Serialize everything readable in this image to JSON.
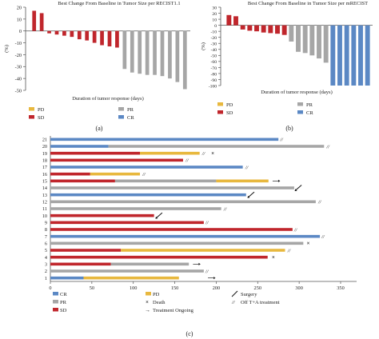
{
  "chart_data": [
    {
      "panel": "(a)",
      "type": "bar",
      "title": "Best Change From Baseline in Tumor Size per RECIST1.1",
      "ylabel": "(%)",
      "xlabel": "Duration of tumor response (days)",
      "ylim": [
        -50,
        20
      ],
      "yticks": [
        20,
        10,
        0,
        -10,
        -20,
        -30,
        -40,
        -50
      ],
      "values": [
        17,
        15,
        -2,
        -3,
        -4,
        -5,
        -7,
        -8,
        -10,
        -12,
        -13,
        -14,
        -32,
        -35,
        -36,
        -37,
        -37,
        -38,
        -40,
        -43,
        -49
      ],
      "response": [
        "SD",
        "SD",
        "SD",
        "SD",
        "SD",
        "SD",
        "SD",
        "SD",
        "SD",
        "SD",
        "SD",
        "SD",
        "PR",
        "PR",
        "PR",
        "PR",
        "PR",
        "PR",
        "PR",
        "PR",
        "PR"
      ],
      "legend": [
        {
          "key": "PD",
          "label": "PD",
          "color": "#e8b83e"
        },
        {
          "key": "PR",
          "label": "PR",
          "color": "#a6a6a6"
        },
        {
          "key": "SD",
          "label": "SD",
          "color": "#c0262c"
        },
        {
          "key": "CR",
          "label": "CR",
          "color": "#5b88c4"
        }
      ]
    },
    {
      "panel": "(b)",
      "type": "bar",
      "title": "Best Change From Baseline in Tumor Size per mRECIST",
      "ylabel": "(%)",
      "xlabel": "Duration of tumor response (days)",
      "ylim": [
        -100,
        30
      ],
      "yticks": [
        30,
        20,
        10,
        0,
        -10,
        -20,
        -30,
        -40,
        -50,
        -60,
        -70,
        -80,
        -90,
        -100
      ],
      "values": [
        17,
        15,
        -7,
        -9,
        -10,
        -12,
        -13,
        -14,
        -16,
        -27,
        -44,
        -46,
        -50,
        -55,
        -62,
        -100,
        -100,
        -100,
        -100,
        -100,
        -100
      ],
      "response": [
        "SD",
        "SD",
        "SD",
        "SD",
        "SD",
        "SD",
        "SD",
        "SD",
        "SD",
        "PR",
        "PR",
        "PR",
        "PR",
        "PR",
        "PR",
        "CR",
        "CR",
        "CR",
        "CR",
        "CR",
        "CR"
      ],
      "legend": [
        {
          "key": "PD",
          "label": "PD",
          "color": "#e8b83e"
        },
        {
          "key": "PR",
          "label": "PR",
          "color": "#a6a6a6"
        },
        {
          "key": "SD",
          "label": "SD",
          "color": "#c0262c"
        },
        {
          "key": "CR",
          "label": "CR",
          "color": "#5b88c4"
        }
      ]
    },
    {
      "panel": "(c)",
      "type": "swimmer",
      "xlim": [
        0,
        350
      ],
      "xticks": [
        0,
        50,
        100,
        150,
        200,
        250,
        300,
        350
      ],
      "patients": [
        {
          "id": "1",
          "segments": [
            {
              "s": "CR",
              "from": 0,
              "to": 40
            },
            {
              "s": "PD",
              "from": 40,
              "to": 155
            }
          ],
          "marker": "arrow",
          "at": 190
        },
        {
          "id": "2",
          "segments": [
            {
              "s": "PR",
              "from": 0,
              "to": 185
            }
          ],
          "marker": "off",
          "at": 186
        },
        {
          "id": "3",
          "segments": [
            {
              "s": "SD",
              "from": 0,
              "to": 73
            },
            {
              "s": "PR",
              "from": 73,
              "to": 167
            }
          ],
          "marker": "arrow",
          "at": 172
        },
        {
          "id": "4",
          "segments": [
            {
              "s": "SD",
              "from": 0,
              "to": 262
            }
          ],
          "marker": "death",
          "at": 266
        },
        {
          "id": "5",
          "segments": [
            {
              "s": "SD",
              "from": 0,
              "to": 85
            },
            {
              "s": "PD",
              "from": 85,
              "to": 283
            }
          ],
          "marker": "off",
          "at": 285
        },
        {
          "id": "6",
          "segments": [
            {
              "s": "PR",
              "from": 0,
              "to": 305
            }
          ],
          "marker": "death",
          "at": 308
        },
        {
          "id": "7",
          "segments": [
            {
              "s": "CR",
              "from": 0,
              "to": 325
            }
          ],
          "marker": "off",
          "at": 326
        },
        {
          "id": "8",
          "segments": [
            {
              "s": "SD",
              "from": 0,
              "to": 292
            }
          ],
          "marker": "off",
          "at": 293
        },
        {
          "id": "9",
          "segments": [
            {
              "s": "SD",
              "from": 0,
              "to": 185
            }
          ],
          "marker": "off",
          "at": 186
        },
        {
          "id": "10",
          "segments": [
            {
              "s": "SD",
              "from": 0,
              "to": 125
            }
          ],
          "marker": "surgery",
          "at": 131
        },
        {
          "id": "11",
          "segments": [
            {
              "s": "PR",
              "from": 0,
              "to": 206
            }
          ],
          "marker": "off",
          "at": 208
        },
        {
          "id": "12",
          "segments": [
            {
              "s": "PR",
              "from": 0,
              "to": 320
            }
          ],
          "marker": "off",
          "at": 322
        },
        {
          "id": "13",
          "segments": [
            {
              "s": "CR",
              "from": 0,
              "to": 236
            }
          ],
          "marker": "surgery",
          "at": 242
        },
        {
          "id": "14",
          "segments": [
            {
              "s": "PR",
              "from": 0,
              "to": 294
            }
          ],
          "marker": "surgery",
          "at": 299
        },
        {
          "id": "15",
          "segments": [
            {
              "s": "SD",
              "from": 0,
              "to": 78
            },
            {
              "s": "PR",
              "from": 78,
              "to": 200
            },
            {
              "s": "PD",
              "from": 200,
              "to": 263
            }
          ],
          "marker": "arrow",
          "at": 268
        },
        {
          "id": "16",
          "segments": [
            {
              "s": "SD",
              "from": 0,
              "to": 48
            },
            {
              "s": "PD",
              "from": 48,
              "to": 108
            }
          ],
          "marker": "off",
          "at": 110
        },
        {
          "id": "17",
          "segments": [
            {
              "s": "CR",
              "from": 0,
              "to": 232
            }
          ],
          "marker": "off",
          "at": 234
        },
        {
          "id": "18",
          "segments": [
            {
              "s": "SD",
              "from": 0,
              "to": 160
            }
          ],
          "marker": "off",
          "at": 162
        },
        {
          "id": "19",
          "segments": [
            {
              "s": "SD",
              "from": 0,
              "to": 108
            },
            {
              "s": "PD",
              "from": 108,
              "to": 180
            }
          ],
          "marker": "off",
          "at": 182,
          "extra": {
            "marker": "death",
            "at": 193
          }
        },
        {
          "id": "20",
          "segments": [
            {
              "s": "CR",
              "from": 0,
              "to": 70
            },
            {
              "s": "PR",
              "from": 70,
              "to": 330
            }
          ],
          "marker": "off",
          "at": 332
        },
        {
          "id": "21",
          "segments": [
            {
              "s": "CR",
              "from": 0,
              "to": 275
            }
          ],
          "marker": "off",
          "at": 276
        }
      ],
      "legend": [
        {
          "kind": "swatch",
          "key": "CR",
          "label": "CR",
          "color": "#5b88c4"
        },
        {
          "kind": "swatch",
          "key": "PR",
          "label": "PR",
          "color": "#a6a6a6"
        },
        {
          "kind": "swatch",
          "key": "SD",
          "label": "SD",
          "color": "#c0262c"
        },
        {
          "kind": "swatch",
          "key": "PD",
          "label": "PD",
          "color": "#e8b83e"
        },
        {
          "kind": "death",
          "label": "Death",
          "glyph": "×"
        },
        {
          "kind": "arrow",
          "label": "Treatment Ongoing",
          "glyph": "→"
        },
        {
          "kind": "surgery",
          "label": "Surgery"
        },
        {
          "kind": "off",
          "label": "Off T+A treatment",
          "glyph": "//"
        }
      ]
    }
  ],
  "captions": {
    "a": "(a)",
    "b": "(b)",
    "c": "(c)"
  },
  "colors": {
    "CR": "#5b88c4",
    "PR": "#a6a6a6",
    "SD": "#c0262c",
    "PD": "#e8b83e",
    "death": "#c0262c",
    "axis": "#555555"
  }
}
